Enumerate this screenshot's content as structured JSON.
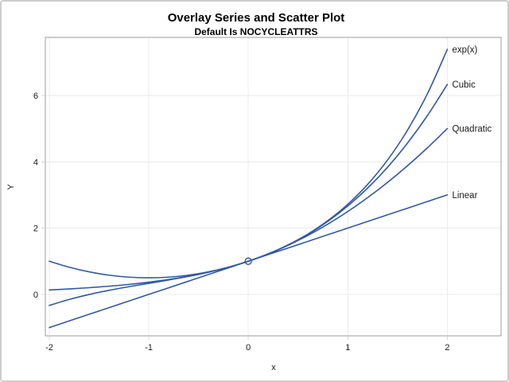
{
  "chart_data": {
    "type": "line",
    "title": "Overlay Series and Scatter Plot",
    "subtitle": "Default Is NOCYCLEATTRS",
    "xlabel": "x",
    "ylabel": "Y",
    "xlim": [
      -2.04,
      2.54
    ],
    "ylim": [
      -1.25,
      7.75
    ],
    "grid": true,
    "legend_position": "curve labels at right ends of lines",
    "line_color": "#3058a5",
    "x_ticks": {
      "values": [
        -2,
        -1,
        0,
        1,
        2
      ],
      "labels": [
        "-2",
        "-1",
        "0",
        "1",
        "2"
      ]
    },
    "y_ticks": {
      "values": [
        0,
        2,
        4,
        6
      ],
      "labels": [
        "0",
        "2",
        "4",
        "6"
      ]
    },
    "x": [
      -2,
      -1.8,
      -1.6,
      -1.4,
      -1.2,
      -1,
      -0.8,
      -0.6,
      -0.4,
      -0.2,
      0,
      0.2,
      0.4,
      0.6,
      0.8,
      1,
      1.2,
      1.4,
      1.6,
      1.8,
      2
    ],
    "series": [
      {
        "name": "exp",
        "label": "exp(x)",
        "y": [
          0.135,
          0.165,
          0.202,
          0.247,
          0.301,
          0.368,
          0.449,
          0.549,
          0.67,
          0.819,
          1,
          1.221,
          1.492,
          1.822,
          2.226,
          2.718,
          3.32,
          4.055,
          4.953,
          6.05,
          7.389
        ]
      },
      {
        "name": "cubic",
        "label": "Cubic",
        "y": [
          -0.333,
          -0.152,
          -0.003,
          0.123,
          0.232,
          0.333,
          0.435,
          0.544,
          0.669,
          0.819,
          1,
          1.221,
          1.491,
          1.816,
          2.205,
          2.667,
          3.208,
          3.837,
          4.563,
          5.392,
          6.333
        ]
      },
      {
        "name": "quadratic",
        "label": "Quadratic",
        "y": [
          1,
          0.82,
          0.68,
          0.58,
          0.52,
          0.5,
          0.52,
          0.58,
          0.68,
          0.82,
          1,
          1.22,
          1.48,
          1.78,
          2.12,
          2.5,
          2.92,
          3.38,
          3.88,
          4.42,
          5
        ]
      },
      {
        "name": "linear",
        "label": "Linear",
        "y": [
          -1,
          -0.8,
          -0.6,
          -0.4,
          -0.2,
          0,
          0.2,
          0.4,
          0.6,
          0.8,
          1,
          1.2,
          1.4,
          1.6,
          1.8,
          2,
          2.2,
          2.4,
          2.6,
          2.8,
          3
        ]
      }
    ],
    "scatter": {
      "marker": "open-circle",
      "color": "#3058a5",
      "points": [
        [
          0,
          1
        ]
      ]
    }
  }
}
